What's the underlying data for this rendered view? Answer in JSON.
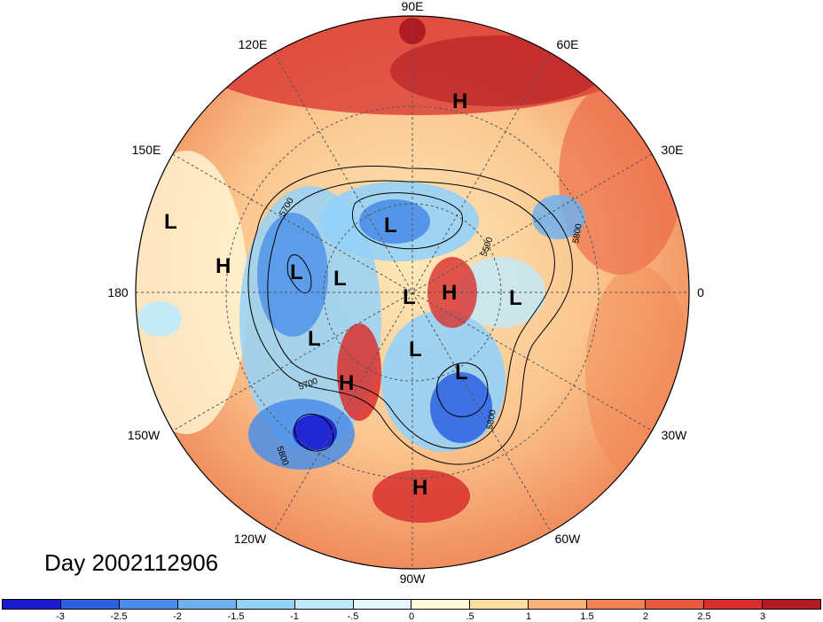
{
  "title": "Day 2002112906",
  "lon_labels": [
    "90E",
    "60E",
    "30E",
    "0",
    "30W",
    "60W",
    "90W",
    "120W",
    "150W",
    "180",
    "150E",
    "120E"
  ],
  "contour_labels": [
    "5700",
    "5500",
    "5800",
    "5700",
    "5800",
    "5800"
  ],
  "pressure_centers": [
    {
      "type": "H",
      "id": "h-north-asia"
    },
    {
      "type": "L",
      "id": "l-east-siberia"
    },
    {
      "type": "L",
      "id": "l-west-pacific-far"
    },
    {
      "type": "H",
      "id": "h-north-pacific"
    },
    {
      "type": "L",
      "id": "l-kamchatka"
    },
    {
      "type": "L",
      "id": "l-bering"
    },
    {
      "type": "L",
      "id": "l-pole-1"
    },
    {
      "type": "H",
      "id": "h-arctic"
    },
    {
      "type": "L",
      "id": "l-europe"
    },
    {
      "type": "L",
      "id": "l-alaska"
    },
    {
      "type": "L",
      "id": "l-canada"
    },
    {
      "type": "H",
      "id": "h-west-canada"
    },
    {
      "type": "L",
      "id": "l-hudson"
    },
    {
      "type": "H",
      "id": "h-mexico"
    }
  ],
  "colorbar": {
    "colors": [
      "#1a1ad0",
      "#2d60e0",
      "#4b8ee8",
      "#6eb0f0",
      "#95d2f8",
      "#bfeafc",
      "#e6f7fd",
      "#fff7d6",
      "#fde0a0",
      "#f9b277",
      "#f28553",
      "#ea5a3d",
      "#d8302e",
      "#b21a24"
    ],
    "tick_labels": [
      "-3",
      "-2.5",
      "-2",
      "-1.5",
      "-1",
      "-.5",
      "0",
      ".5",
      "1",
      "1.5",
      "2",
      "2.5",
      "3"
    ]
  }
}
